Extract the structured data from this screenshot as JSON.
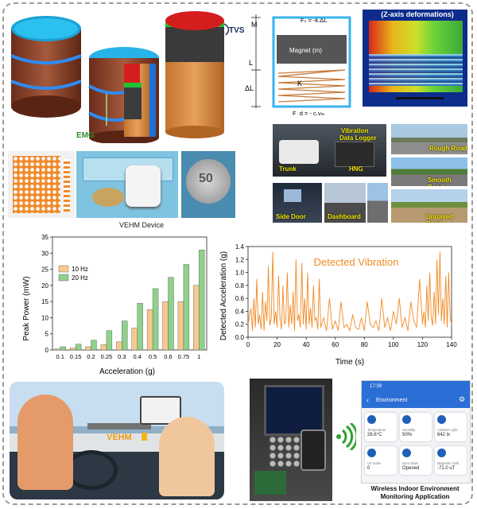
{
  "figure": {
    "labels": {
      "tvs": "TVS",
      "emg": "EMG",
      "vehm_device": "VEHM Device",
      "z_axis": "(Z-axis deformations)",
      "vehm_dash": "VEHM",
      "wireless_app": "Wireless Indoor Environment Monitoring Application",
      "wireless_app_line1": "Wireless Indoor Environment",
      "wireless_app_line2": "Monitoring Application"
    },
    "model": {
      "m": "M",
      "l": "L",
      "dl": "ΔL",
      "fs": "Fₛ = -k.ΔL",
      "magnet": "Magnet (m)",
      "fm": "Fₘ = mg",
      "k": "K",
      "fd": "F_d = - c.vₘ"
    },
    "photo_tags": {
      "trunk": "Trunk",
      "vibration_logger_1": "Vibration",
      "vibration_logger_2": "Data Logger",
      "hng": "HNG",
      "side_door": "Side Door",
      "dashboard": "Dashboard",
      "rough_road": "Rough Road",
      "smooth_road": "Smooth Road",
      "unpaved_road": "Unpaved Road"
    },
    "coin_text": "50",
    "app": {
      "time": "17:39",
      "title": "Environment",
      "cards": [
        {
          "label": "Temperature",
          "value": "26.6°C"
        },
        {
          "label": "Humidity",
          "value": "50%"
        },
        {
          "label": "Ambient Light",
          "value": "642 lx"
        },
        {
          "label": "UV Index",
          "value": "0"
        },
        {
          "label": "Door State",
          "value": "Opened"
        },
        {
          "label": "Magnetic Field",
          "value": "-71.0 uT"
        }
      ],
      "colors": {
        "header": "#2b6fd6",
        "icon": "#1e5fb8"
      }
    }
  },
  "chart_data": [
    {
      "type": "bar",
      "categories": [
        "0.1",
        "0.15",
        "0.2",
        "0.25",
        "0.3",
        "0.4",
        "0.5",
        "0.6",
        "0.75",
        "1"
      ],
      "series": [
        {
          "name": "10 Hz",
          "color": "#f8c98e",
          "values": [
            0.3,
            0.6,
            1.0,
            1.7,
            2.5,
            6.8,
            12.5,
            15.0,
            15.0,
            20.0
          ]
        },
        {
          "name": "20 Hz",
          "color": "#8fd18a",
          "values": [
            1.0,
            1.8,
            3.0,
            6.0,
            9.0,
            14.5,
            19.0,
            22.5,
            26.5,
            31.0
          ]
        }
      ],
      "xlabel": "Acceleration (g)",
      "ylabel": "Peak Power (mW)",
      "ylim": [
        0,
        35
      ],
      "yticks": [
        0,
        5,
        10,
        15,
        20,
        25,
        30,
        35
      ],
      "legend": "top-left"
    },
    {
      "type": "line",
      "title": "Detected Vibration",
      "xlabel": "Time (s)",
      "ylabel": "Detected Acceleration (g)",
      "xlim": [
        0,
        140
      ],
      "ylim": [
        0.0,
        1.4
      ],
      "xticks": [
        0,
        20,
        40,
        60,
        80,
        100,
        120,
        140
      ],
      "yticks": [
        0.0,
        0.2,
        0.4,
        0.6,
        0.8,
        1.0,
        1.2,
        1.4
      ],
      "color": "#f08a24",
      "x": [
        0,
        2,
        3,
        4,
        5,
        6,
        7,
        8,
        9,
        10,
        11,
        12,
        13,
        14,
        15,
        16,
        17,
        18,
        19,
        20,
        21,
        22,
        23,
        24,
        25,
        26,
        27,
        28,
        29,
        30,
        31,
        32,
        33,
        34,
        35,
        36,
        37,
        38,
        39,
        40,
        41,
        42,
        43,
        44,
        45,
        46,
        47,
        48,
        49,
        50,
        52,
        54,
        56,
        58,
        60,
        62,
        64,
        66,
        68,
        70,
        72,
        74,
        76,
        78,
        80,
        82,
        84,
        86,
        88,
        90,
        92,
        94,
        96,
        98,
        100,
        102,
        104,
        106,
        108,
        110,
        112,
        114,
        116,
        118,
        120,
        121,
        122,
        123,
        124,
        125,
        126,
        127,
        128,
        129,
        130,
        131,
        132,
        133,
        134,
        135,
        136,
        137,
        138,
        139,
        140
      ],
      "y": [
        0.2,
        0.45,
        0.1,
        0.6,
        0.15,
        0.9,
        0.2,
        0.35,
        0.12,
        0.7,
        0.1,
        0.55,
        0.25,
        1.1,
        0.18,
        0.3,
        1.32,
        0.2,
        0.4,
        0.15,
        0.95,
        0.3,
        0.12,
        0.8,
        0.2,
        0.25,
        1.0,
        0.15,
        0.5,
        0.2,
        0.7,
        0.1,
        1.2,
        0.25,
        0.35,
        0.15,
        1.15,
        0.2,
        0.6,
        0.12,
        1.0,
        0.2,
        0.45,
        0.15,
        0.8,
        0.25,
        0.3,
        0.12,
        0.9,
        0.15,
        0.3,
        0.1,
        0.6,
        0.12,
        0.25,
        0.1,
        0.55,
        0.15,
        0.2,
        0.1,
        0.35,
        0.15,
        0.12,
        0.3,
        0.1,
        0.55,
        0.2,
        0.15,
        0.25,
        0.1,
        0.6,
        0.15,
        0.3,
        0.1,
        0.4,
        0.2,
        0.6,
        0.15,
        0.3,
        0.1,
        0.55,
        0.25,
        0.15,
        0.9,
        0.2,
        0.4,
        0.15,
        0.8,
        0.25,
        1.0,
        0.3,
        0.18,
        0.7,
        0.2,
        1.2,
        0.35,
        1.32,
        0.25,
        0.6,
        0.2,
        0.95,
        0.15,
        1.0,
        0.3,
        0.2
      ]
    }
  ]
}
